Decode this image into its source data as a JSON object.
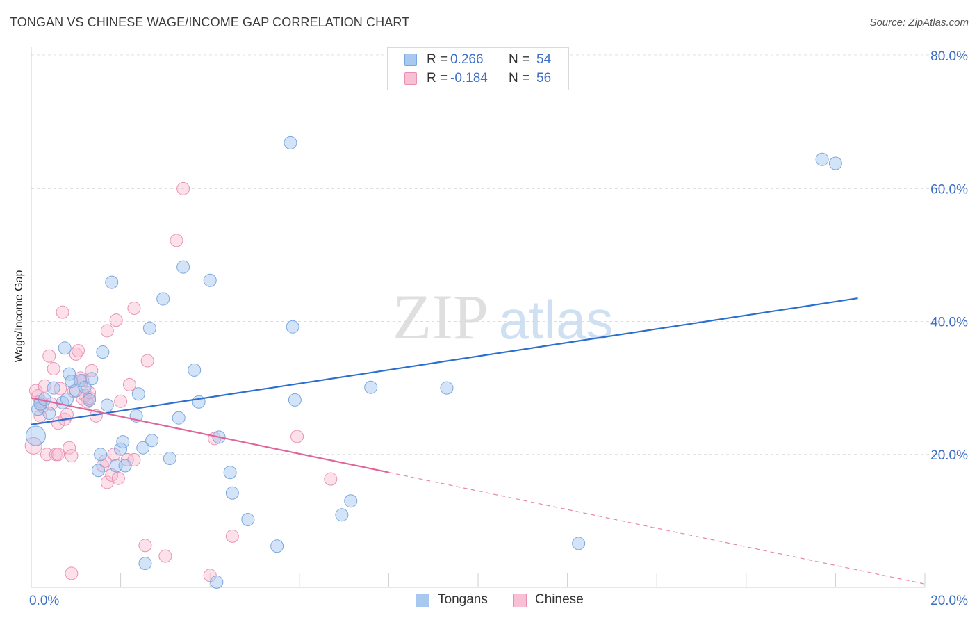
{
  "header": {
    "title": "TONGAN VS CHINESE WAGE/INCOME GAP CORRELATION CHART",
    "source": "Source: ZipAtlas.com"
  },
  "watermark": {
    "zip": "ZIP",
    "atlas": "atlas"
  },
  "legend": {
    "tongans": {
      "r_label": "R =",
      "r_value": "0.266",
      "n_label": "N =",
      "n_value": "54",
      "color": "#a8c8f0",
      "border": "#7aa6e0"
    },
    "chinese": {
      "r_label": "R =",
      "r_value": "-0.184",
      "n_label": "N =",
      "n_value": "56",
      "color": "#f8c0d4",
      "border": "#e890b0"
    }
  },
  "bottom_legend": {
    "tongans": "Tongans",
    "chinese": "Chinese"
  },
  "colors": {
    "tongans_fill": "rgba(160,196,240,0.45)",
    "tongans_stroke": "#7ba7de",
    "tongans_line": "#2b6fcf",
    "chinese_fill": "rgba(248,188,208,0.45)",
    "chinese_stroke": "#e793b3",
    "chinese_line": "#e0669a",
    "tick_label": "#3d6fc7"
  },
  "chart_data": {
    "type": "scatter",
    "title": "TONGAN VS CHINESE WAGE/INCOME GAP CORRELATION CHART",
    "xlabel": "",
    "ylabel": "Wage/Income Gap",
    "xlim": [
      0,
      20
    ],
    "ylim": [
      0,
      82
    ],
    "x_ticks": [
      0,
      2,
      4,
      6,
      8,
      10,
      12,
      14,
      16,
      18,
      20
    ],
    "x_tick_labels": [
      {
        "value": 0,
        "label": "0.0%"
      },
      {
        "value": 20,
        "label": "20.0%"
      }
    ],
    "y_ticks": [
      {
        "value": 20,
        "label": "20.0%"
      },
      {
        "value": 40,
        "label": "40.0%"
      },
      {
        "value": 60,
        "label": "60.0%"
      },
      {
        "value": 80,
        "label": "80.0%"
      }
    ],
    "grid": "horizontal dashed",
    "legend_position": "top-center",
    "series": [
      {
        "name": "Tongans",
        "trend": {
          "x": [
            0,
            18.5
          ],
          "y": [
            24.5,
            43.5
          ],
          "dashed_x": []
        },
        "points": [
          [
            0.1,
            22.8,
            14
          ],
          [
            0.15,
            26.8,
            9
          ],
          [
            0.2,
            27.6,
            9
          ],
          [
            0.3,
            28.3,
            9
          ],
          [
            0.4,
            26.2,
            9
          ],
          [
            0.5,
            30.0,
            9
          ],
          [
            0.7,
            27.8,
            9
          ],
          [
            0.8,
            28.3,
            9
          ],
          [
            0.75,
            36.0,
            9
          ],
          [
            0.85,
            32.1,
            9
          ],
          [
            0.9,
            31.0,
            9
          ],
          [
            1.0,
            29.6,
            9
          ],
          [
            1.1,
            31.1,
            9
          ],
          [
            1.2,
            30.1,
            9
          ],
          [
            1.3,
            28.2,
            9
          ],
          [
            1.35,
            31.4,
            9
          ],
          [
            1.6,
            35.4,
            9
          ],
          [
            1.7,
            27.4,
            9
          ],
          [
            1.8,
            45.9,
            9
          ],
          [
            1.5,
            17.6,
            9
          ],
          [
            1.55,
            20.0,
            9
          ],
          [
            1.9,
            18.3,
            9
          ],
          [
            2.0,
            20.8,
            9
          ],
          [
            2.05,
            21.9,
            9
          ],
          [
            2.1,
            18.3,
            9
          ],
          [
            2.35,
            25.8,
            9
          ],
          [
            2.4,
            29.1,
            9
          ],
          [
            2.5,
            21.0,
            9
          ],
          [
            2.65,
            39.0,
            9
          ],
          [
            2.7,
            22.1,
            9
          ],
          [
            2.55,
            3.6,
            9
          ],
          [
            2.95,
            43.4,
            9
          ],
          [
            3.1,
            19.4,
            9
          ],
          [
            3.3,
            25.5,
            9
          ],
          [
            3.4,
            48.2,
            9
          ],
          [
            3.65,
            32.7,
            9
          ],
          [
            3.75,
            27.9,
            9
          ],
          [
            4.0,
            46.2,
            9
          ],
          [
            4.2,
            22.6,
            9
          ],
          [
            4.45,
            17.3,
            9
          ],
          [
            4.5,
            14.2,
            9
          ],
          [
            4.85,
            10.2,
            9
          ],
          [
            4.15,
            0.8,
            9
          ],
          [
            5.5,
            6.2,
            9
          ],
          [
            5.8,
            66.9,
            9
          ],
          [
            5.85,
            39.2,
            9
          ],
          [
            5.9,
            28.2,
            9
          ],
          [
            6.95,
            10.9,
            9
          ],
          [
            7.15,
            13.0,
            9
          ],
          [
            7.6,
            30.1,
            9
          ],
          [
            9.3,
            30.0,
            9
          ],
          [
            12.25,
            6.6,
            9
          ],
          [
            17.7,
            64.4,
            9
          ],
          [
            18.0,
            63.8,
            9
          ]
        ]
      },
      {
        "name": "Chinese",
        "trend": {
          "x": [
            0,
            8.0
          ],
          "y": [
            28.5,
            17.3
          ],
          "dashed_x": [
            8.0,
            20.0
          ]
        },
        "points": [
          [
            0.05,
            21.3,
            12
          ],
          [
            0.1,
            29.6,
            9
          ],
          [
            0.15,
            28.8,
            9
          ],
          [
            0.2,
            25.8,
            9
          ],
          [
            0.25,
            27.2,
            9
          ],
          [
            0.3,
            30.3,
            9
          ],
          [
            0.35,
            20.0,
            9
          ],
          [
            0.4,
            34.8,
            9
          ],
          [
            0.45,
            27.6,
            9
          ],
          [
            0.5,
            32.9,
            9
          ],
          [
            0.55,
            20.0,
            9
          ],
          [
            0.6,
            24.7,
            9
          ],
          [
            0.65,
            29.9,
            9
          ],
          [
            0.7,
            41.4,
            9
          ],
          [
            0.75,
            25.3,
            9
          ],
          [
            0.8,
            26.0,
            9
          ],
          [
            0.85,
            21.0,
            9
          ],
          [
            0.9,
            19.8,
            9
          ],
          [
            0.95,
            29.5,
            9
          ],
          [
            1.0,
            35.1,
            9
          ],
          [
            1.05,
            35.6,
            9
          ],
          [
            1.1,
            31.5,
            9
          ],
          [
            1.15,
            28.4,
            9
          ],
          [
            1.2,
            28.9,
            9
          ],
          [
            1.25,
            27.9,
            9
          ],
          [
            1.3,
            28.5,
            9
          ],
          [
            1.35,
            32.6,
            9
          ],
          [
            1.45,
            25.8,
            9
          ],
          [
            1.6,
            18.3,
            9
          ],
          [
            1.65,
            19.0,
            9
          ],
          [
            1.7,
            15.8,
            9
          ],
          [
            1.7,
            38.6,
            9
          ],
          [
            1.8,
            16.9,
            9
          ],
          [
            1.85,
            20.0,
            9
          ],
          [
            1.9,
            40.2,
            9
          ],
          [
            2.0,
            28.0,
            9
          ],
          [
            2.15,
            19.2,
            9
          ],
          [
            2.2,
            30.5,
            9
          ],
          [
            2.3,
            42.0,
            9
          ],
          [
            2.3,
            19.2,
            9
          ],
          [
            2.55,
            6.3,
            9
          ],
          [
            2.6,
            34.1,
            9
          ],
          [
            3.0,
            4.7,
            9
          ],
          [
            3.25,
            52.2,
            9
          ],
          [
            3.4,
            60.0,
            9
          ],
          [
            4.1,
            22.4,
            9
          ],
          [
            4.0,
            1.8,
            9
          ],
          [
            4.5,
            7.7,
            9
          ],
          [
            5.95,
            22.7,
            9
          ],
          [
            6.7,
            16.3,
            9
          ],
          [
            0.9,
            2.1,
            9
          ],
          [
            1.15,
            31.1,
            9
          ],
          [
            0.6,
            20.0,
            9
          ],
          [
            1.3,
            29.3,
            9
          ],
          [
            0.2,
            28.0,
            9
          ],
          [
            1.95,
            16.4,
            9
          ]
        ]
      }
    ]
  }
}
